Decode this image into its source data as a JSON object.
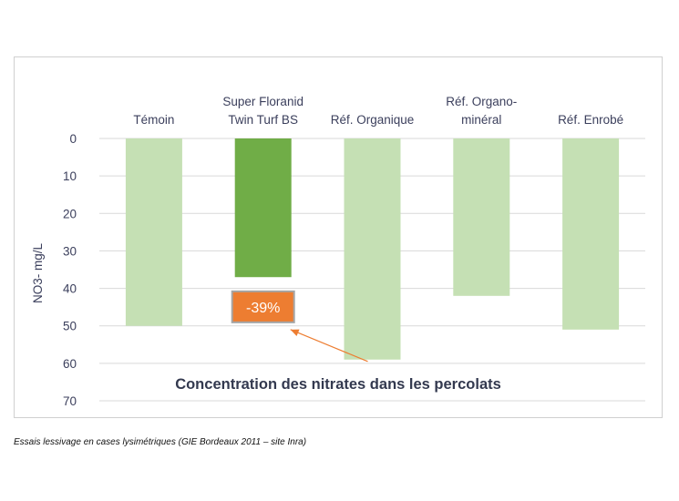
{
  "chart_data": {
    "type": "bar",
    "orientation": "vertical",
    "y_axis_reversed": true,
    "categories": [
      [
        "Témoin"
      ],
      [
        "Super Floranid",
        "Twin Turf BS"
      ],
      [
        "Réf. Organique"
      ],
      [
        "Réf. Organo-",
        "minéral"
      ],
      [
        "Réf. Enrobé"
      ]
    ],
    "values": [
      50,
      37,
      59,
      42,
      51
    ],
    "highlight_index": 1,
    "colors": {
      "bar": "#c5e0b4",
      "highlight": "#70ad47",
      "annotation_fill": "#ed7d31",
      "annotation_border": "#a5a5a5",
      "arrow": "#ed7d31",
      "grid": "#d9d9d9",
      "text": "#3b3f5c"
    },
    "ylim": [
      0,
      70
    ],
    "yticks": [
      0,
      10,
      20,
      30,
      40,
      50,
      60,
      70
    ],
    "ylabel": "NO3- mg/L",
    "grid": true,
    "title": "Concentration des nitrates dans les percolats",
    "annotation": {
      "text": "-39%",
      "target_index": 1
    }
  },
  "caption": "Essais lessivage en cases lysimétriques (GIE Bordeaux 2011 – site Inra)"
}
